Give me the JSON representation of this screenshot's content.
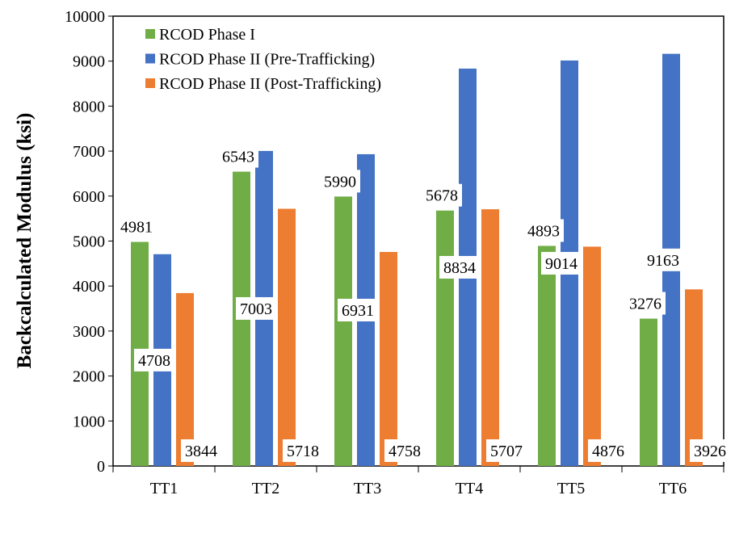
{
  "chart_data": {
    "type": "bar",
    "title": "",
    "xlabel": "",
    "ylabel": "Backcalculated Modulus (ksi)",
    "ylim": [
      0,
      10000
    ],
    "yticks": [
      0,
      1000,
      2000,
      3000,
      4000,
      5000,
      6000,
      7000,
      8000,
      9000,
      10000
    ],
    "grid": false,
    "legend_position": "top-left",
    "categories": [
      "TT1",
      "TT2",
      "TT3",
      "TT4",
      "TT5",
      "TT6"
    ],
    "series": [
      {
        "name": "RCOD Phase I",
        "color": "#70AD47",
        "values": [
          4981,
          6543,
          5990,
          5678,
          4893,
          3276
        ]
      },
      {
        "name": "RCOD Phase II (Pre-Trafficking)",
        "color": "#4472C4",
        "values": [
          4708,
          7003,
          6931,
          8834,
          9014,
          9163
        ]
      },
      {
        "name": "RCOD Phase II (Post-Trafficking)",
        "color": "#ED7D31",
        "values": [
          3844,
          5718,
          4758,
          5707,
          4876,
          3926
        ]
      }
    ]
  }
}
